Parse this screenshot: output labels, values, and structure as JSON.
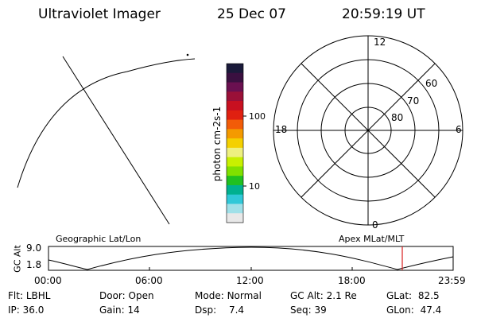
{
  "header": {
    "instrument": "Ultraviolet Imager",
    "date": "25 Dec 07",
    "time": "20:59:19 UT"
  },
  "colorbar": {
    "label": "photon cm-2s-1",
    "tick_100": "100",
    "tick_10": "10",
    "colors": [
      "#1a1a3a",
      "#3a1040",
      "#6a1050",
      "#9a1038",
      "#c81020",
      "#e02010",
      "#f25c08",
      "#f49a00",
      "#f4d000",
      "#eef080",
      "#c8f000",
      "#80e000",
      "#20c020",
      "#00b090",
      "#30c8d8",
      "#a0e0e8",
      "#e8e8e8"
    ]
  },
  "polar": {
    "mlt_top": "12",
    "mlt_bottom": "0",
    "mlt_left": "18",
    "mlt_right": "6",
    "lat_60": "60",
    "lat_70": "70",
    "lat_80": "80"
  },
  "timeline": {
    "ylabel": "GC Alt",
    "y_top": "9.0",
    "y_bottom": "1.8",
    "left_label": "Geographic Lat/Lon",
    "right_label": "Apex MLat/MLT",
    "ticks": [
      "00:00",
      "06:00",
      "12:00",
      "18:00",
      "23:59"
    ],
    "marker_time": "20:59",
    "marker_color": "#d82020"
  },
  "info": {
    "flt_label": "Flt:",
    "flt_value": "LBHL",
    "ip_label": "IP:",
    "ip_value": "36.0",
    "door_label": "Door:",
    "door_value": "Open",
    "gain_label": "Gain:",
    "gain_value": "14",
    "mode_label": "Mode:",
    "mode_value": "Normal",
    "dsp_label": "Dsp:",
    "dsp_value": "7.4",
    "gcalt_label": "GC Alt:",
    "gcalt_value": "2.1 Re",
    "seq_label": "Seq:",
    "seq_value": "39",
    "glat_label": "GLat:",
    "glat_value": "82.5",
    "glon_label": "GLon:",
    "glon_value": "47.4"
  }
}
